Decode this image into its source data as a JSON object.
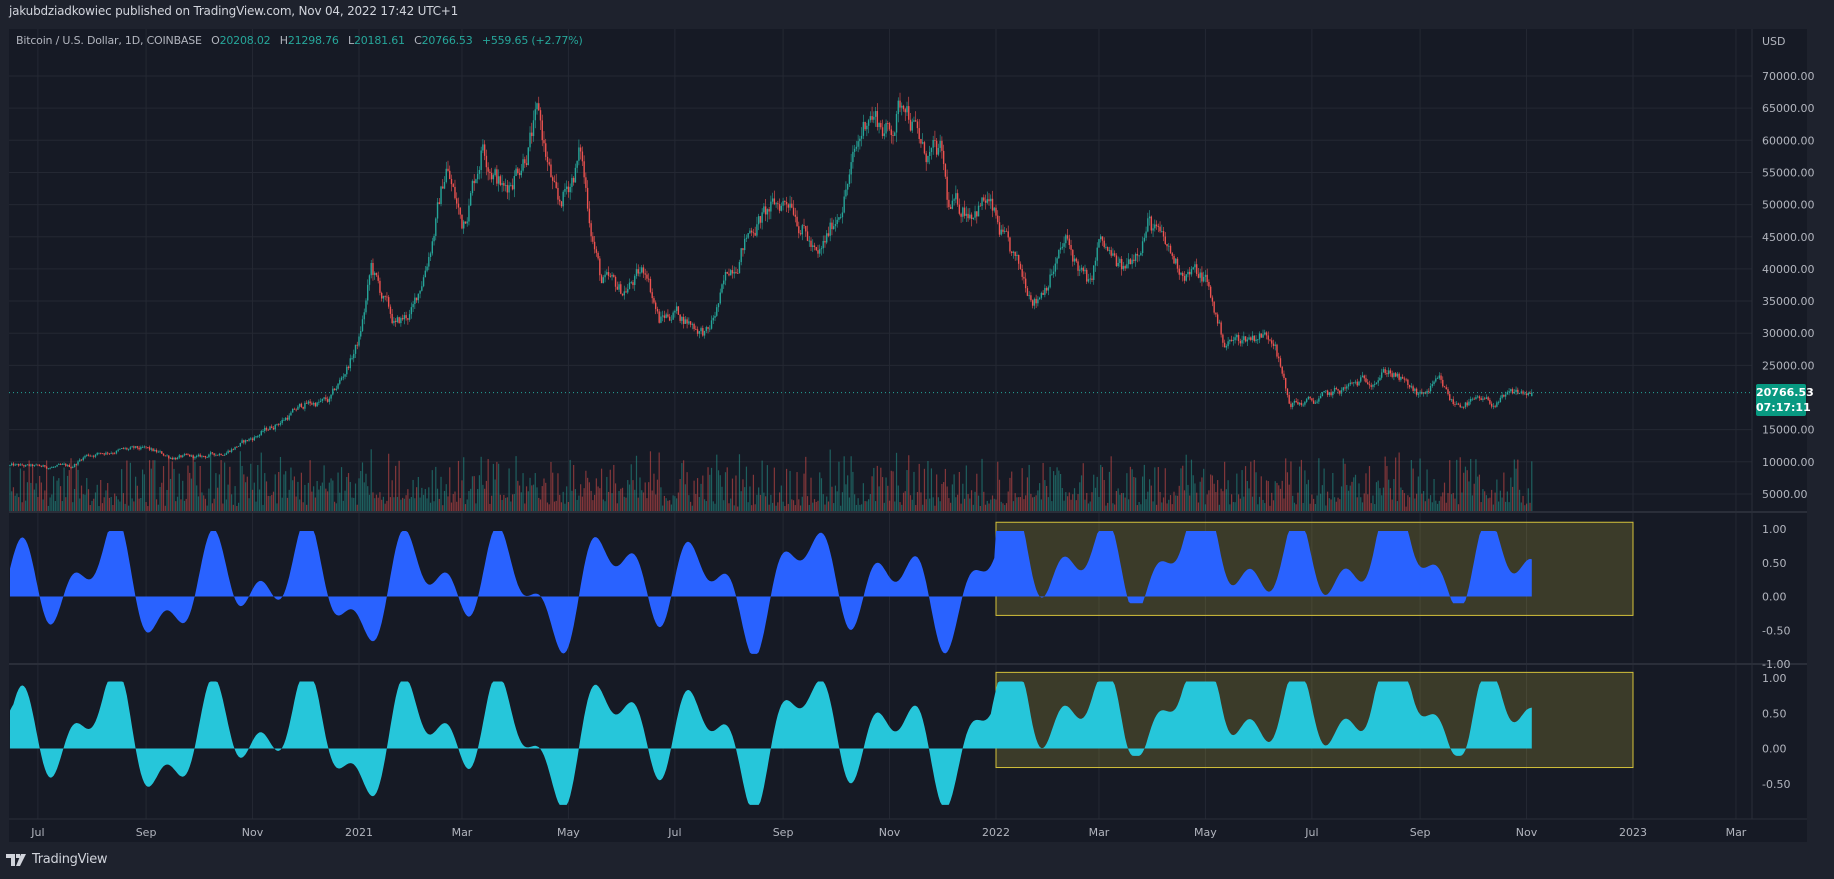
{
  "header": {
    "publisher_line": "jakubdziadkowiec published on TradingView.com, Nov 04, 2022 17:42 UTC+1"
  },
  "legend": {
    "symbol": "Bitcoin / U.S. Dollar, 1D, COINBASE",
    "o_label": "O",
    "o": "20208.02",
    "h_label": "H",
    "h": "21298.76",
    "l_label": "L",
    "l": "20181.61",
    "c_label": "C",
    "c": "20766.53",
    "change": "+559.65 (+2.77%)"
  },
  "price_tag": {
    "price": "20766.53",
    "countdown": "07:17:11"
  },
  "footer": {
    "brand": "TradingView"
  },
  "colors": {
    "background": "#161a25",
    "frame": "#1e222d",
    "grid": "#242833",
    "up": "#26a69a",
    "down": "#ef5350",
    "osc1": "#2962ff",
    "osc2": "#26c6da",
    "highlight_border": "#d4c13a",
    "price_tag": "#089981"
  },
  "chart_data": {
    "type": "candlestick",
    "symbol": "Bitcoin / U.S. Dollar, 1D, COINBASE",
    "date_range": [
      "2020-06-15",
      "2022-11-04"
    ],
    "price_axis": {
      "unit": "USD",
      "ticks": [
        70000,
        65000,
        60000,
        55000,
        50000,
        45000,
        40000,
        35000,
        30000,
        25000,
        20000,
        15000,
        10000,
        5000
      ],
      "tick_labels": [
        "70000.00",
        "65000.00",
        "60000.00",
        "55000.00",
        "50000.00",
        "45000.00",
        "40000.00",
        "35000.00",
        "30000.00",
        "25000.00",
        "15000.00",
        "10000.00",
        "5000.00"
      ],
      "unit_label": "USD"
    },
    "time_axis": {
      "tick_labels": [
        "Jul",
        "Sep",
        "Nov",
        "2021",
        "Mar",
        "May",
        "Jul",
        "Sep",
        "Nov",
        "2022",
        "Mar",
        "May",
        "Jul",
        "Sep",
        "Nov",
        "2023",
        "Mar"
      ],
      "tick_dates": [
        "2020-07-01",
        "2020-09-01",
        "2020-11-01",
        "2021-01-01",
        "2021-03-01",
        "2021-05-01",
        "2021-07-01",
        "2021-09-01",
        "2021-11-01",
        "2022-01-01",
        "2022-03-01",
        "2022-05-01",
        "2022-07-01",
        "2022-09-01",
        "2022-11-01",
        "2023-01-01",
        "2023-03-01"
      ]
    },
    "price_path": [
      [
        "2020-06-15",
        9400
      ],
      [
        "2020-07-01",
        9200
      ],
      [
        "2020-07-20",
        9200
      ],
      [
        "2020-07-28",
        11000
      ],
      [
        "2020-08-15",
        11800
      ],
      [
        "2020-09-01",
        11900
      ],
      [
        "2020-09-15",
        10800
      ],
      [
        "2020-10-01",
        10600
      ],
      [
        "2020-10-15",
        11500
      ],
      [
        "2020-11-01",
        13700
      ],
      [
        "2020-11-15",
        16000
      ],
      [
        "2020-12-01",
        19000
      ],
      [
        "2020-12-15",
        19400
      ],
      [
        "2021-01-01",
        29000
      ],
      [
        "2021-01-08",
        40000
      ],
      [
        "2021-01-22",
        31000
      ],
      [
        "2021-02-01",
        33500
      ],
      [
        "2021-02-20",
        56000
      ],
      [
        "2021-03-01",
        47000
      ],
      [
        "2021-03-13",
        60000
      ],
      [
        "2021-03-25",
        52000
      ],
      [
        "2021-04-14",
        63500
      ],
      [
        "2021-04-25",
        49000
      ],
      [
        "2021-05-08",
        58000
      ],
      [
        "2021-05-20",
        38000
      ],
      [
        "2021-06-01",
        36500
      ],
      [
        "2021-06-15",
        40000
      ],
      [
        "2021-06-22",
        32000
      ],
      [
        "2021-07-01",
        33500
      ],
      [
        "2021-07-20",
        29800
      ],
      [
        "2021-08-01",
        39800
      ],
      [
        "2021-08-15",
        47000
      ],
      [
        "2021-09-06",
        51500
      ],
      [
        "2021-09-21",
        41000
      ],
      [
        "2021-10-01",
        48000
      ],
      [
        "2021-10-20",
        65000
      ],
      [
        "2021-11-01",
        61000
      ],
      [
        "2021-11-10",
        67500
      ],
      [
        "2021-11-20",
        58000
      ],
      [
        "2021-12-01",
        57000
      ],
      [
        "2021-12-05",
        49000
      ],
      [
        "2021-12-27",
        50500
      ],
      [
        "2022-01-10",
        41500
      ],
      [
        "2022-01-24",
        35500
      ],
      [
        "2022-02-10",
        44000
      ],
      [
        "2022-02-24",
        37000
      ],
      [
        "2022-03-01",
        44000
      ],
      [
        "2022-03-15",
        39300
      ],
      [
        "2022-03-29",
        47500
      ],
      [
        "2022-04-15",
        40500
      ],
      [
        "2022-05-01",
        38500
      ],
      [
        "2022-05-12",
        28500
      ],
      [
        "2022-06-01",
        29800
      ],
      [
        "2022-06-10",
        29500
      ],
      [
        "2022-06-18",
        19000
      ],
      [
        "2022-07-01",
        19300
      ],
      [
        "2022-07-15",
        20800
      ],
      [
        "2022-08-14",
        24300
      ],
      [
        "2022-09-01",
        20100
      ],
      [
        "2022-09-12",
        22300
      ],
      [
        "2022-09-20",
        19000
      ],
      [
        "2022-10-01",
        19300
      ],
      [
        "2022-10-15",
        19100
      ],
      [
        "2022-10-26",
        20700
      ],
      [
        "2022-11-04",
        20766.53
      ]
    ],
    "last_candle": {
      "open": 20208.02,
      "high": 21298.76,
      "low": 20181.61,
      "close": 20766.53,
      "change": 559.65,
      "change_pct": 2.77
    },
    "oscillators": [
      {
        "color": "#2962ff",
        "axis_ticks": [
          1.0,
          0.5,
          0.0,
          -0.5,
          -1.0
        ],
        "tick_labels": [
          "1.00",
          "0.50",
          "0.00",
          "-0.50",
          "-1.00"
        ],
        "range": [
          -1.0,
          1.0
        ],
        "highlight": {
          "from": "2022-01-01",
          "to": "2023-01-01",
          "y": [
            -0.28,
            1.1
          ]
        }
      },
      {
        "color": "#26c6da",
        "axis_ticks": [
          1.0,
          0.5,
          0.0,
          -0.5
        ],
        "tick_labels": [
          "1.00",
          "0.50",
          "0.00",
          "-0.50"
        ],
        "range": [
          -0.75,
          1.05
        ],
        "highlight": {
          "from": "2022-01-01",
          "to": "2023-01-01",
          "y": [
            -0.27,
            1.08
          ]
        }
      }
    ]
  }
}
